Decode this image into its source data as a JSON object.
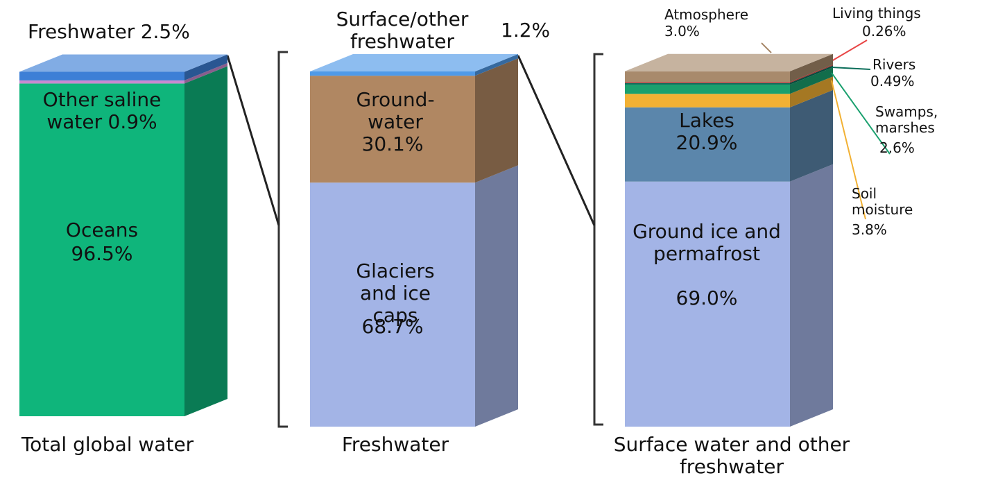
{
  "chart_data": [
    {
      "type": "bar",
      "categories": [
        "Total global water"
      ],
      "ylim": [
        0,
        100
      ],
      "series": [
        {
          "name": "Oceans",
          "color": "#0fb57b",
          "values": [
            96.5
          ],
          "value_labels": [
            "96.5%"
          ]
        },
        {
          "name": "Other saline water",
          "color": "#c98ad0",
          "values": [
            0.9
          ],
          "value_labels": [
            "0.9%"
          ]
        },
        {
          "name": "Freshwater",
          "color": "#3d7fd6",
          "values": [
            2.5
          ],
          "value_labels": [
            "2.5%"
          ]
        }
      ]
    },
    {
      "type": "bar",
      "categories": [
        "Freshwater"
      ],
      "ylim": [
        0,
        100
      ],
      "series": [
        {
          "name": "Glaciers and ice caps",
          "color": "#a3b4e6",
          "values": [
            68.7
          ],
          "value_labels": [
            "68.7%"
          ]
        },
        {
          "name": "Ground-water",
          "color": "#b08762",
          "values": [
            30.1
          ],
          "value_labels": [
            "30.1%"
          ]
        },
        {
          "name": "Surface/other freshwater",
          "color": "#4f9ae8",
          "values": [
            1.2
          ],
          "value_labels": [
            "1.2%"
          ]
        }
      ]
    },
    {
      "type": "bar",
      "categories": [
        "Surface water and other freshwater"
      ],
      "ylim": [
        0,
        100
      ],
      "series": [
        {
          "name": "Ground ice and permafrost",
          "color": "#a3b4e6",
          "values": [
            69.0
          ],
          "value_labels": [
            "69.0%"
          ]
        },
        {
          "name": "Lakes",
          "color": "#5b86ab",
          "values": [
            20.9
          ],
          "value_labels": [
            "20.9%"
          ]
        },
        {
          "name": "Soil moisture",
          "color": "#f2b134",
          "values": [
            3.8
          ],
          "value_labels": [
            "3.8%"
          ]
        },
        {
          "name": "Swamps, marshes",
          "color": "#1aa06e",
          "values": [
            2.6
          ],
          "value_labels": [
            "2.6%"
          ]
        },
        {
          "name": "Rivers",
          "color": "#0b6e5a",
          "values": [
            0.49
          ],
          "value_labels": [
            "0.49%"
          ]
        },
        {
          "name": "Living things",
          "color": "#e84545",
          "values": [
            0.26
          ],
          "value_labels": [
            "0.26%"
          ]
        },
        {
          "name": "Atmosphere",
          "color": "#a88a6c",
          "values": [
            3.0
          ],
          "value_labels": [
            "3.0%"
          ]
        }
      ]
    }
  ]
}
